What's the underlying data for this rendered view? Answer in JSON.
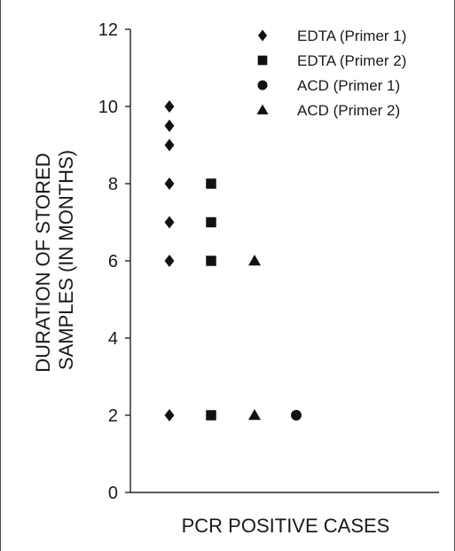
{
  "chart_data": {
    "type": "scatter",
    "xlabel": "PCR POSITIVE CASES",
    "ylabel_lines": [
      "DURATION OF STORED",
      "SAMPLES (IN MONTHS)"
    ],
    "ylim": [
      0,
      12
    ],
    "yticks": [
      "0",
      "2",
      "4",
      "6",
      "8",
      "10",
      "12"
    ],
    "grid": false,
    "legend_position": "top-right",
    "series": [
      {
        "name": "EDTA (Primer 1)",
        "marker": "diamond",
        "color": "#111111",
        "x": 1,
        "values": [
          10,
          9.5,
          9,
          8,
          7,
          6,
          2
        ]
      },
      {
        "name": "EDTA (Primer 2)",
        "marker": "square",
        "color": "#111111",
        "x": 2,
        "values": [
          8,
          7,
          6,
          2
        ]
      },
      {
        "name": "ACD (Primer 1)",
        "marker": "circle",
        "color": "#111111",
        "x": 4,
        "values": [
          2
        ]
      },
      {
        "name": "ACD (Primer 2)",
        "marker": "triangle",
        "color": "#111111",
        "x": 3,
        "values": [
          6,
          2
        ]
      }
    ]
  }
}
